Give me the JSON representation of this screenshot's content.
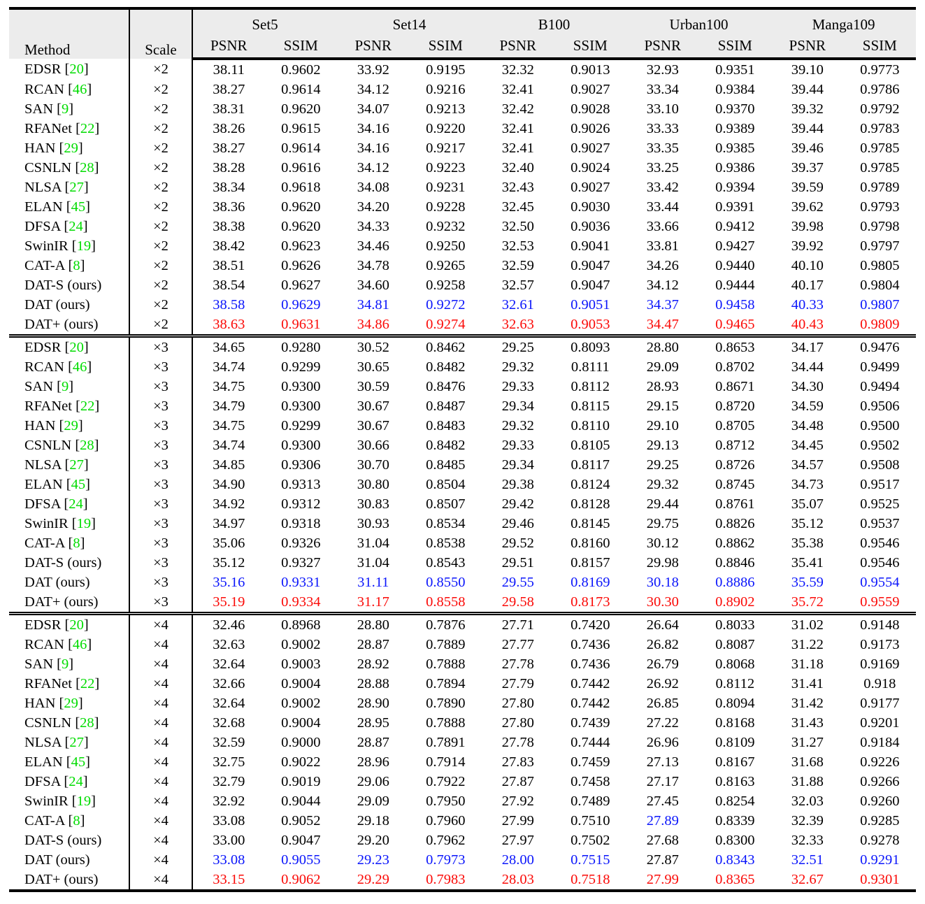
{
  "colors": {
    "page_bg": "#ffffff",
    "header_bg": "#ececec",
    "citation_green": "#00dc00",
    "value_colors": {
      "black": "#000000",
      "blue": "#0b16fb",
      "red": "#fb0a07"
    }
  },
  "header": {
    "method_label": "Method",
    "scale_label": "Scale",
    "groups": [
      "Set5",
      "Set14",
      "B100",
      "Urban100",
      "Manga109"
    ],
    "metric_labels": [
      "PSNR",
      "SSIM"
    ]
  },
  "table": {
    "blocks": [
      {
        "scale": "×2",
        "rows": [
          {
            "method": "EDSR",
            "cite": "20",
            "values": [
              "38.11",
              "0.9602",
              "33.92",
              "0.9195",
              "32.32",
              "0.9013",
              "32.93",
              "0.9351",
              "39.10",
              "0.9773"
            ]
          },
          {
            "method": "RCAN",
            "cite": "46",
            "values": [
              "38.27",
              "0.9614",
              "34.12",
              "0.9216",
              "32.41",
              "0.9027",
              "33.34",
              "0.9384",
              "39.44",
              "0.9786"
            ]
          },
          {
            "method": "SAN",
            "cite": "9",
            "values": [
              "38.31",
              "0.9620",
              "34.07",
              "0.9213",
              "32.42",
              "0.9028",
              "33.10",
              "0.9370",
              "39.32",
              "0.9792"
            ]
          },
          {
            "method": "RFANet",
            "cite": "22",
            "values": [
              "38.26",
              "0.9615",
              "34.16",
              "0.9220",
              "32.41",
              "0.9026",
              "33.33",
              "0.9389",
              "39.44",
              "0.9783"
            ]
          },
          {
            "method": "HAN",
            "cite": "29",
            "values": [
              "38.27",
              "0.9614",
              "34.16",
              "0.9217",
              "32.41",
              "0.9027",
              "33.35",
              "0.9385",
              "39.46",
              "0.9785"
            ]
          },
          {
            "method": "CSNLN",
            "cite": "28",
            "values": [
              "38.28",
              "0.9616",
              "34.12",
              "0.9223",
              "32.40",
              "0.9024",
              "33.25",
              "0.9386",
              "39.37",
              "0.9785"
            ]
          },
          {
            "method": "NLSA",
            "cite": "27",
            "values": [
              "38.34",
              "0.9618",
              "34.08",
              "0.9231",
              "32.43",
              "0.9027",
              "33.42",
              "0.9394",
              "39.59",
              "0.9789"
            ]
          },
          {
            "method": "ELAN",
            "cite": "45",
            "values": [
              "38.36",
              "0.9620",
              "34.20",
              "0.9228",
              "32.45",
              "0.9030",
              "33.44",
              "0.9391",
              "39.62",
              "0.9793"
            ]
          },
          {
            "method": "DFSA",
            "cite": "24",
            "values": [
              "38.38",
              "0.9620",
              "34.33",
              "0.9232",
              "32.50",
              "0.9036",
              "33.66",
              "0.9412",
              "39.98",
              "0.9798"
            ]
          },
          {
            "method": "SwinIR",
            "cite": "19",
            "values": [
              "38.42",
              "0.9623",
              "34.46",
              "0.9250",
              "32.53",
              "0.9041",
              "33.81",
              "0.9427",
              "39.92",
              "0.9797"
            ]
          },
          {
            "method": "CAT-A",
            "cite": "8",
            "values": [
              "38.51",
              "0.9626",
              "34.78",
              "0.9265",
              "32.59",
              "0.9047",
              "34.26",
              "0.9440",
              "40.10",
              "0.9805"
            ]
          },
          {
            "method": "DAT-S (ours)",
            "cite": null,
            "values": [
              "38.54",
              "0.9627",
              "34.60",
              "0.9258",
              "32.57",
              "0.9047",
              "34.12",
              "0.9444",
              "40.17",
              "0.9804"
            ]
          },
          {
            "method": "DAT (ours)",
            "cite": null,
            "color": "blue",
            "values": [
              "38.58",
              "0.9629",
              "34.81",
              "0.9272",
              "32.61",
              "0.9051",
              "34.37",
              "0.9458",
              "40.33",
              "0.9807"
            ]
          },
          {
            "method": "DAT+ (ours)",
            "cite": null,
            "color": "red",
            "values": [
              "38.63",
              "0.9631",
              "34.86",
              "0.9274",
              "32.63",
              "0.9053",
              "34.47",
              "0.9465",
              "40.43",
              "0.9809"
            ]
          }
        ]
      },
      {
        "scale": "×3",
        "rows": [
          {
            "method": "EDSR",
            "cite": "20",
            "values": [
              "34.65",
              "0.9280",
              "30.52",
              "0.8462",
              "29.25",
              "0.8093",
              "28.80",
              "0.8653",
              "34.17",
              "0.9476"
            ]
          },
          {
            "method": "RCAN",
            "cite": "46",
            "values": [
              "34.74",
              "0.9299",
              "30.65",
              "0.8482",
              "29.32",
              "0.8111",
              "29.09",
              "0.8702",
              "34.44",
              "0.9499"
            ]
          },
          {
            "method": "SAN",
            "cite": "9",
            "values": [
              "34.75",
              "0.9300",
              "30.59",
              "0.8476",
              "29.33",
              "0.8112",
              "28.93",
              "0.8671",
              "34.30",
              "0.9494"
            ]
          },
          {
            "method": "RFANet",
            "cite": "22",
            "values": [
              "34.79",
              "0.9300",
              "30.67",
              "0.8487",
              "29.34",
              "0.8115",
              "29.15",
              "0.8720",
              "34.59",
              "0.9506"
            ]
          },
          {
            "method": "HAN",
            "cite": "29",
            "values": [
              "34.75",
              "0.9299",
              "30.67",
              "0.8483",
              "29.32",
              "0.8110",
              "29.10",
              "0.8705",
              "34.48",
              "0.9500"
            ]
          },
          {
            "method": "CSNLN",
            "cite": "28",
            "values": [
              "34.74",
              "0.9300",
              "30.66",
              "0.8482",
              "29.33",
              "0.8105",
              "29.13",
              "0.8712",
              "34.45",
              "0.9502"
            ]
          },
          {
            "method": "NLSA",
            "cite": "27",
            "values": [
              "34.85",
              "0.9306",
              "30.70",
              "0.8485",
              "29.34",
              "0.8117",
              "29.25",
              "0.8726",
              "34.57",
              "0.9508"
            ]
          },
          {
            "method": "ELAN",
            "cite": "45",
            "values": [
              "34.90",
              "0.9313",
              "30.80",
              "0.8504",
              "29.38",
              "0.8124",
              "29.32",
              "0.8745",
              "34.73",
              "0.9517"
            ]
          },
          {
            "method": "DFSA",
            "cite": "24",
            "values": [
              "34.92",
              "0.9312",
              "30.83",
              "0.8507",
              "29.42",
              "0.8128",
              "29.44",
              "0.8761",
              "35.07",
              "0.9525"
            ]
          },
          {
            "method": "SwinIR",
            "cite": "19",
            "values": [
              "34.97",
              "0.9318",
              "30.93",
              "0.8534",
              "29.46",
              "0.8145",
              "29.75",
              "0.8826",
              "35.12",
              "0.9537"
            ]
          },
          {
            "method": "CAT-A",
            "cite": "8",
            "values": [
              "35.06",
              "0.9326",
              "31.04",
              "0.8538",
              "29.52",
              "0.8160",
              "30.12",
              "0.8862",
              "35.38",
              "0.9546"
            ]
          },
          {
            "method": "DAT-S (ours)",
            "cite": null,
            "values": [
              "35.12",
              "0.9327",
              "31.04",
              "0.8543",
              "29.51",
              "0.8157",
              "29.98",
              "0.8846",
              "35.41",
              "0.9546"
            ]
          },
          {
            "method": "DAT (ours)",
            "cite": null,
            "color": "blue",
            "values": [
              "35.16",
              "0.9331",
              "31.11",
              "0.8550",
              "29.55",
              "0.8169",
              "30.18",
              "0.8886",
              "35.59",
              "0.9554"
            ]
          },
          {
            "method": "DAT+ (ours)",
            "cite": null,
            "color": "red",
            "values": [
              "35.19",
              "0.9334",
              "31.17",
              "0.8558",
              "29.58",
              "0.8173",
              "30.30",
              "0.8902",
              "35.72",
              "0.9559"
            ]
          }
        ]
      },
      {
        "scale": "×4",
        "rows": [
          {
            "method": "EDSR",
            "cite": "20",
            "values": [
              "32.46",
              "0.8968",
              "28.80",
              "0.7876",
              "27.71",
              "0.7420",
              "26.64",
              "0.8033",
              "31.02",
              "0.9148"
            ]
          },
          {
            "method": "RCAN",
            "cite": "46",
            "values": [
              "32.63",
              "0.9002",
              "28.87",
              "0.7889",
              "27.77",
              "0.7436",
              "26.82",
              "0.8087",
              "31.22",
              "0.9173"
            ]
          },
          {
            "method": "SAN",
            "cite": "9",
            "values": [
              "32.64",
              "0.9003",
              "28.92",
              "0.7888",
              "27.78",
              "0.7436",
              "26.79",
              "0.8068",
              "31.18",
              "0.9169"
            ]
          },
          {
            "method": "RFANet",
            "cite": "22",
            "values": [
              "32.66",
              "0.9004",
              "28.88",
              "0.7894",
              "27.79",
              "0.7442",
              "26.92",
              "0.8112",
              "31.41",
              "0.918"
            ]
          },
          {
            "method": "HAN",
            "cite": "29",
            "values": [
              "32.64",
              "0.9002",
              "28.90",
              "0.7890",
              "27.80",
              "0.7442",
              "26.85",
              "0.8094",
              "31.42",
              "0.9177"
            ]
          },
          {
            "method": "CSNLN",
            "cite": "28",
            "values": [
              "32.68",
              "0.9004",
              "28.95",
              "0.7888",
              "27.80",
              "0.7439",
              "27.22",
              "0.8168",
              "31.43",
              "0.9201"
            ]
          },
          {
            "method": "NLSA",
            "cite": "27",
            "values": [
              "32.59",
              "0.9000",
              "28.87",
              "0.7891",
              "27.78",
              "0.7444",
              "26.96",
              "0.8109",
              "31.27",
              "0.9184"
            ]
          },
          {
            "method": "ELAN",
            "cite": "45",
            "values": [
              "32.75",
              "0.9022",
              "28.96",
              "0.7914",
              "27.83",
              "0.7459",
              "27.13",
              "0.8167",
              "31.68",
              "0.9226"
            ]
          },
          {
            "method": "DFSA",
            "cite": "24",
            "values": [
              "32.79",
              "0.9019",
              "29.06",
              "0.7922",
              "27.87",
              "0.7458",
              "27.17",
              "0.8163",
              "31.88",
              "0.9266"
            ]
          },
          {
            "method": "SwinIR",
            "cite": "19",
            "values": [
              "32.92",
              "0.9044",
              "29.09",
              "0.7950",
              "27.92",
              "0.7489",
              "27.45",
              "0.8254",
              "32.03",
              "0.9260"
            ]
          },
          {
            "method": "CAT-A",
            "cite": "8",
            "overrides": {
              "6": "blue"
            },
            "values": [
              "33.08",
              "0.9052",
              "29.18",
              "0.7960",
              "27.99",
              "0.7510",
              "27.89",
              "0.8339",
              "32.39",
              "0.9285"
            ]
          },
          {
            "method": "DAT-S (ours)",
            "cite": null,
            "values": [
              "33.00",
              "0.9047",
              "29.20",
              "0.7962",
              "27.97",
              "0.7502",
              "27.68",
              "0.8300",
              "32.33",
              "0.9278"
            ]
          },
          {
            "method": "DAT (ours)",
            "cite": null,
            "color": "blue",
            "overrides": {
              "6": "black"
            },
            "values": [
              "33.08",
              "0.9055",
              "29.23",
              "0.7973",
              "28.00",
              "0.7515",
              "27.87",
              "0.8343",
              "32.51",
              "0.9291"
            ]
          },
          {
            "method": "DAT+ (ours)",
            "cite": null,
            "color": "red",
            "values": [
              "33.15",
              "0.9062",
              "29.29",
              "0.7983",
              "28.03",
              "0.7518",
              "27.99",
              "0.8365",
              "32.67",
              "0.9301"
            ]
          }
        ]
      }
    ]
  }
}
